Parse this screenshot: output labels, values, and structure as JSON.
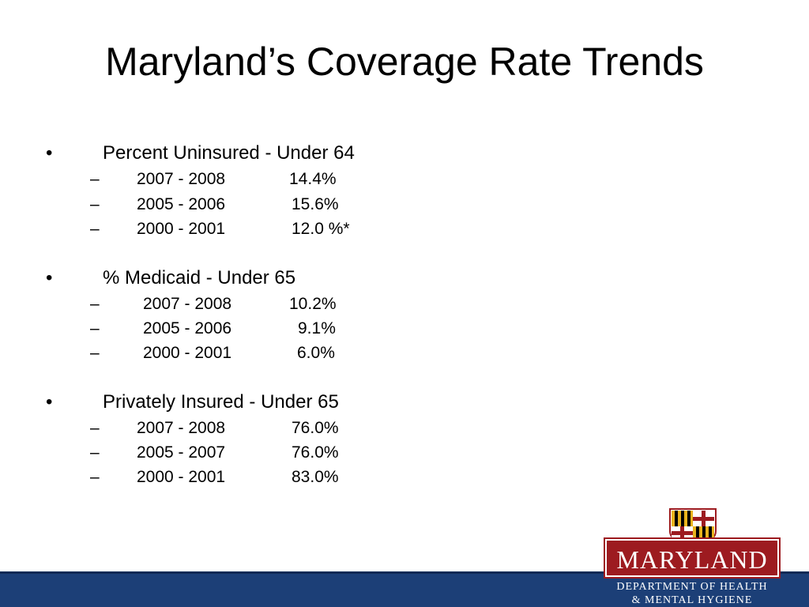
{
  "title": "Maryland’s Coverage Rate Trends",
  "bullet_glyph": "•",
  "dash_glyph": "–",
  "sections": [
    {
      "heading": "Percent Uninsured - Under 64",
      "items": [
        {
          "period": "2007 - 2008",
          "value": "14.4%"
        },
        {
          "period": "2005 - 2006",
          "value": "15.6%"
        },
        {
          "period": "2000 - 2001",
          "value": "12.0 %*"
        }
      ]
    },
    {
      "heading": "% Medicaid - Under 65",
      "items": [
        {
          "period": "2007 - 2008",
          "value": "10.2%"
        },
        {
          "period": "2005 - 2006",
          "value": "9.1%"
        },
        {
          "period": "2000 - 2001",
          "value": "6.0%"
        }
      ]
    },
    {
      "heading": "Privately Insured - Under 65",
      "items": [
        {
          "period": "2007 - 2008",
          "value": "76.0%"
        },
        {
          "period": "2005 - 2007",
          "value": "76.0%"
        },
        {
          "period": "2000 - 2001",
          "value": "83.0%"
        }
      ]
    }
  ],
  "logo": {
    "wordmark": "MARYLAND",
    "department_line1": "DEPARTMENT OF HEALTH",
    "department_line2": "& MENTAL HYGIENE",
    "colors": {
      "red": "#9d1b20",
      "gold": "#e8b31c",
      "black": "#000000",
      "navy": "#1c3f77"
    }
  }
}
